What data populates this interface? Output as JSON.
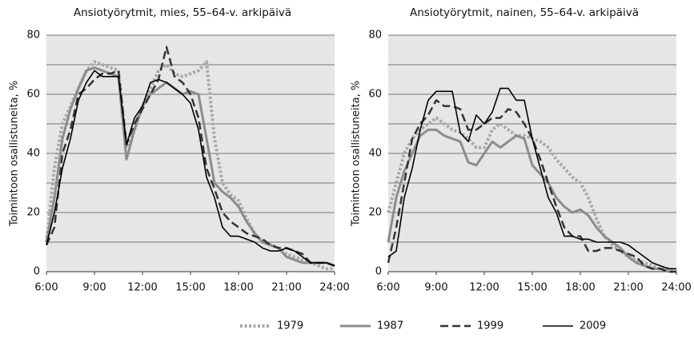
{
  "chart_data": [
    {
      "type": "line",
      "title": "Ansiotyörytmit, mies, 55–64-v. arkipäivä",
      "y_label": "Toimintoon osallistuneita, %",
      "x": [
        6,
        6.5,
        7,
        7.5,
        8,
        8.5,
        9,
        9.5,
        10,
        10.5,
        11,
        11.5,
        12,
        12.5,
        13,
        13.5,
        14,
        14.5,
        15,
        15.5,
        16,
        16.5,
        17,
        17.5,
        18,
        18.5,
        19,
        19.5,
        20,
        20.5,
        21,
        21.5,
        22,
        22.5,
        23,
        23.5,
        24
      ],
      "xlim": [
        6,
        24
      ],
      "xticks": [
        {
          "value": 6,
          "label": "6:00"
        },
        {
          "value": 9,
          "label": "9:00"
        },
        {
          "value": 12,
          "label": "12:00"
        },
        {
          "value": 15,
          "label": "15:00"
        },
        {
          "value": 18,
          "label": "18:00"
        },
        {
          "value": 21,
          "label": "21:00"
        },
        {
          "value": 24,
          "label": "24:00"
        }
      ],
      "ylim": [
        0,
        80
      ],
      "yticks": [
        0,
        20,
        40,
        60,
        80
      ],
      "grid": true,
      "series": [
        {
          "name": "1979",
          "color": "#a8a8a8",
          "line_style": "dotted",
          "values": [
            10,
            35,
            50,
            56,
            62,
            68,
            71,
            70,
            69,
            68,
            42,
            48,
            56,
            62,
            68,
            70,
            67,
            66,
            67,
            68,
            71,
            45,
            30,
            26,
            24,
            18,
            13,
            10,
            9,
            8,
            6,
            5,
            4,
            3,
            2,
            1,
            1
          ]
        },
        {
          "name": "1987",
          "color": "#8c8c8c",
          "line_style": "solid-thick",
          "values": [
            10,
            25,
            45,
            55,
            62,
            68,
            69,
            68,
            67,
            66,
            38,
            48,
            56,
            60,
            62,
            64,
            62,
            60,
            61,
            60,
            45,
            30,
            27,
            25,
            22,
            17,
            13,
            10,
            9,
            8,
            5,
            4,
            3,
            3,
            3,
            3,
            2
          ]
        },
        {
          "name": "1999",
          "color": "#333333",
          "line_style": "dashed",
          "values": [
            9,
            15,
            40,
            48,
            60,
            62,
            65,
            67,
            67,
            68,
            43,
            50,
            55,
            60,
            65,
            76,
            66,
            64,
            60,
            52,
            35,
            28,
            20,
            17,
            15,
            13,
            12,
            11,
            9,
            8,
            8,
            7,
            6,
            3,
            3,
            3,
            2
          ]
        },
        {
          "name": "2009",
          "color": "#000000",
          "line_style": "solid",
          "values": [
            9,
            20,
            35,
            45,
            58,
            64,
            68,
            66,
            66,
            66,
            43,
            52,
            56,
            64,
            65,
            64,
            62,
            60,
            57,
            48,
            32,
            25,
            15,
            12,
            12,
            11,
            10,
            8,
            7,
            7,
            8,
            7,
            5,
            3,
            3,
            3,
            2
          ]
        }
      ]
    },
    {
      "type": "line",
      "title": "Ansiotyörytmit, nainen, 55–64-v. arkipäivä",
      "y_label": "Toimintoon osallistuneita, %",
      "x": [
        6,
        6.5,
        7,
        7.5,
        8,
        8.5,
        9,
        9.5,
        10,
        10.5,
        11,
        11.5,
        12,
        12.5,
        13,
        13.5,
        14,
        14.5,
        15,
        15.5,
        16,
        16.5,
        17,
        17.5,
        18,
        18.5,
        19,
        19.5,
        20,
        20.5,
        21,
        21.5,
        22,
        22.5,
        23,
        23.5,
        24
      ],
      "xlim": [
        6,
        24
      ],
      "xticks": [
        {
          "value": 6,
          "label": "6:00"
        },
        {
          "value": 9,
          "label": "9:00"
        },
        {
          "value": 12,
          "label": "12:00"
        },
        {
          "value": 15,
          "label": "15:00"
        },
        {
          "value": 18,
          "label": "18:00"
        },
        {
          "value": 21,
          "label": "21:00"
        },
        {
          "value": 24,
          "label": "24:00"
        }
      ],
      "ylim": [
        0,
        80
      ],
      "yticks": [
        0,
        20,
        40,
        60,
        80
      ],
      "grid": true,
      "series": [
        {
          "color": "#a8a8a8",
          "line_style": "dotted",
          "values": [
            20,
            30,
            40,
            45,
            48,
            50,
            52,
            50,
            48,
            47,
            45,
            42,
            42,
            48,
            50,
            48,
            46,
            46,
            45,
            44,
            42,
            38,
            35,
            32,
            30,
            25,
            18,
            12,
            9,
            7,
            5,
            4,
            3,
            2,
            1,
            1,
            0
          ]
        },
        {
          "color": "#8c8c8c",
          "line_style": "solid-thick",
          "values": [
            10,
            25,
            34,
            40,
            46,
            48,
            48,
            46,
            45,
            44,
            37,
            36,
            40,
            44,
            42,
            44,
            46,
            45,
            36,
            33,
            30,
            25,
            22,
            20,
            21,
            19,
            15,
            12,
            10,
            8,
            5,
            3,
            2,
            1,
            1,
            0,
            0
          ]
        },
        {
          "color": "#333333",
          "line_style": "dashed",
          "values": [
            3,
            15,
            30,
            45,
            50,
            53,
            58,
            56,
            56,
            55,
            48,
            48,
            50,
            52,
            52,
            55,
            54,
            50,
            45,
            38,
            30,
            22,
            15,
            12,
            12,
            7,
            7,
            8,
            8,
            7,
            6,
            5,
            2,
            1,
            1,
            0,
            0
          ]
        },
        {
          "color": "#000000",
          "line_style": "solid",
          "values": [
            5,
            7,
            25,
            35,
            48,
            58,
            61,
            61,
            61,
            47,
            44,
            53,
            50,
            54,
            62,
            62,
            58,
            58,
            45,
            35,
            25,
            20,
            12,
            12,
            11,
            11,
            10,
            10,
            10,
            10,
            9,
            7,
            5,
            3,
            2,
            1,
            1
          ]
        }
      ]
    }
  ]
}
